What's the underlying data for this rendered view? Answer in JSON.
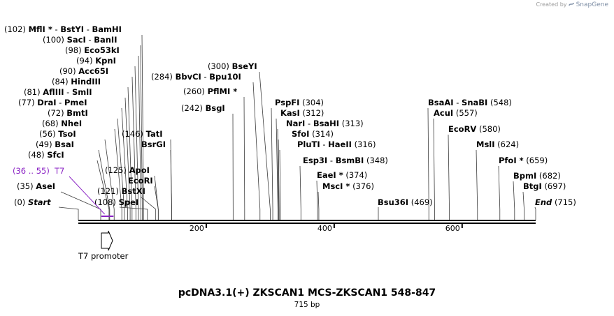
{
  "credit": {
    "prefix": "Created by",
    "brand": "SnapGene"
  },
  "title": "pcDNA3.1(+) ZKSCAN1 MCS-ZKSCAN1 548-847",
  "subtitle": "715 bp",
  "sequence_length": 715,
  "axis_ticks": [
    "200",
    "400",
    "600"
  ],
  "feature": {
    "label": "T7 promoter",
    "range_label": "(36 .. 55)",
    "name": "T7",
    "color": "#8a22c4",
    "start": 36,
    "end": 55
  },
  "sites": [
    {
      "pos": "(102)",
      "names": [
        "MflI *",
        "BstYI",
        "BamHI"
      ],
      "bp": 102,
      "side": "left"
    },
    {
      "pos": "(100)",
      "names": [
        "SacI",
        "BanII"
      ],
      "bp": 100,
      "side": "left"
    },
    {
      "pos": "(98)",
      "names": [
        "Eco53kI"
      ],
      "bp": 98,
      "side": "left"
    },
    {
      "pos": "(94)",
      "names": [
        "KpnI"
      ],
      "bp": 94,
      "side": "left"
    },
    {
      "pos": "(90)",
      "names": [
        "Acc65I"
      ],
      "bp": 90,
      "side": "left"
    },
    {
      "pos": "(84)",
      "names": [
        "HindIII"
      ],
      "bp": 84,
      "side": "left"
    },
    {
      "pos": "(81)",
      "names": [
        "AflIII",
        "SmlI"
      ],
      "bp": 81,
      "side": "left"
    },
    {
      "pos": "(77)",
      "names": [
        "DraI",
        "PmeI"
      ],
      "bp": 77,
      "side": "left"
    },
    {
      "pos": "(72)",
      "names": [
        "BmtI"
      ],
      "bp": 72,
      "side": "left"
    },
    {
      "pos": "(68)",
      "names": [
        "NheI"
      ],
      "bp": 68,
      "side": "left"
    },
    {
      "pos": "(56)",
      "names": [
        "TsoI"
      ],
      "bp": 56,
      "side": "left"
    },
    {
      "pos": "(49)",
      "names": [
        "BsaI"
      ],
      "bp": 49,
      "side": "left"
    },
    {
      "pos": "(48)",
      "names": [
        "SfcI"
      ],
      "bp": 48,
      "side": "left"
    },
    {
      "pos": "(35)",
      "names": [
        "AseI"
      ],
      "bp": 35,
      "side": "left"
    },
    {
      "pos": "(0)",
      "names": [
        "Start"
      ],
      "bp": 0,
      "side": "left",
      "italic": true
    },
    {
      "pos": "(146)",
      "names": [
        "TatI"
      ],
      "bp": 146,
      "side": "left"
    },
    {
      "pos": "",
      "names": [
        "BsrGI"
      ],
      "bp": 146,
      "side": "right"
    },
    {
      "pos": "(125)",
      "names": [
        "ApoI"
      ],
      "bp": 125,
      "side": "left"
    },
    {
      "pos": "",
      "names": [
        "EcoRI"
      ],
      "bp": 125,
      "side": "right"
    },
    {
      "pos": "(121)",
      "names": [
        "BstXI"
      ],
      "bp": 121,
      "side": "left"
    },
    {
      "pos": "(108)",
      "names": [
        "SpeI"
      ],
      "bp": 108,
      "side": "left"
    },
    {
      "pos": "(284)",
      "names": [
        "BbvCI",
        "Bpu10I"
      ],
      "bp": 284,
      "side": "left"
    },
    {
      "pos": "(300)",
      "names": [
        "BseYI"
      ],
      "bp": 300,
      "side": "left"
    },
    {
      "pos": "(260)",
      "names": [
        "PflMI *"
      ],
      "bp": 260,
      "side": "left"
    },
    {
      "pos": "(242)",
      "names": [
        "BsgI"
      ],
      "bp": 242,
      "side": "left"
    },
    {
      "pos": "(304)",
      "names": [
        "PspFI"
      ],
      "bp": 304,
      "side": "right"
    },
    {
      "pos": "(312)",
      "names": [
        "KasI"
      ],
      "bp": 312,
      "side": "right"
    },
    {
      "pos": "(313)",
      "names": [
        "NarI",
        "BsaHI"
      ],
      "bp": 313,
      "side": "right"
    },
    {
      "pos": "(314)",
      "names": [
        "SfoI"
      ],
      "bp": 314,
      "side": "right"
    },
    {
      "pos": "(316)",
      "names": [
        "PluTI",
        "HaeII"
      ],
      "bp": 316,
      "side": "right"
    },
    {
      "pos": "(348)",
      "names": [
        "Esp3I",
        "BsmBI"
      ],
      "bp": 348,
      "side": "right"
    },
    {
      "pos": "(374)",
      "names": [
        "EaeI *"
      ],
      "bp": 374,
      "side": "right"
    },
    {
      "pos": "(376)",
      "names": [
        "MscI *"
      ],
      "bp": 376,
      "side": "right"
    },
    {
      "pos": "(469)",
      "names": [
        "Bsu36I"
      ],
      "bp": 469,
      "side": "right"
    },
    {
      "pos": "(548)",
      "names": [
        "BsaAI",
        "SnaBI"
      ],
      "bp": 548,
      "side": "right"
    },
    {
      "pos": "(557)",
      "names": [
        "AcuI"
      ],
      "bp": 557,
      "side": "right"
    },
    {
      "pos": "(580)",
      "names": [
        "EcoRV"
      ],
      "bp": 580,
      "side": "right"
    },
    {
      "pos": "(624)",
      "names": [
        "MslI"
      ],
      "bp": 624,
      "side": "right"
    },
    {
      "pos": "(659)",
      "names": [
        "PfoI *"
      ],
      "bp": 659,
      "side": "right"
    },
    {
      "pos": "(682)",
      "names": [
        "BpmI"
      ],
      "bp": 682,
      "side": "right"
    },
    {
      "pos": "(697)",
      "names": [
        "BtgI"
      ],
      "bp": 697,
      "side": "right"
    },
    {
      "pos": "(715)",
      "names": [
        "End"
      ],
      "bp": 715,
      "side": "right",
      "italic": true
    }
  ]
}
